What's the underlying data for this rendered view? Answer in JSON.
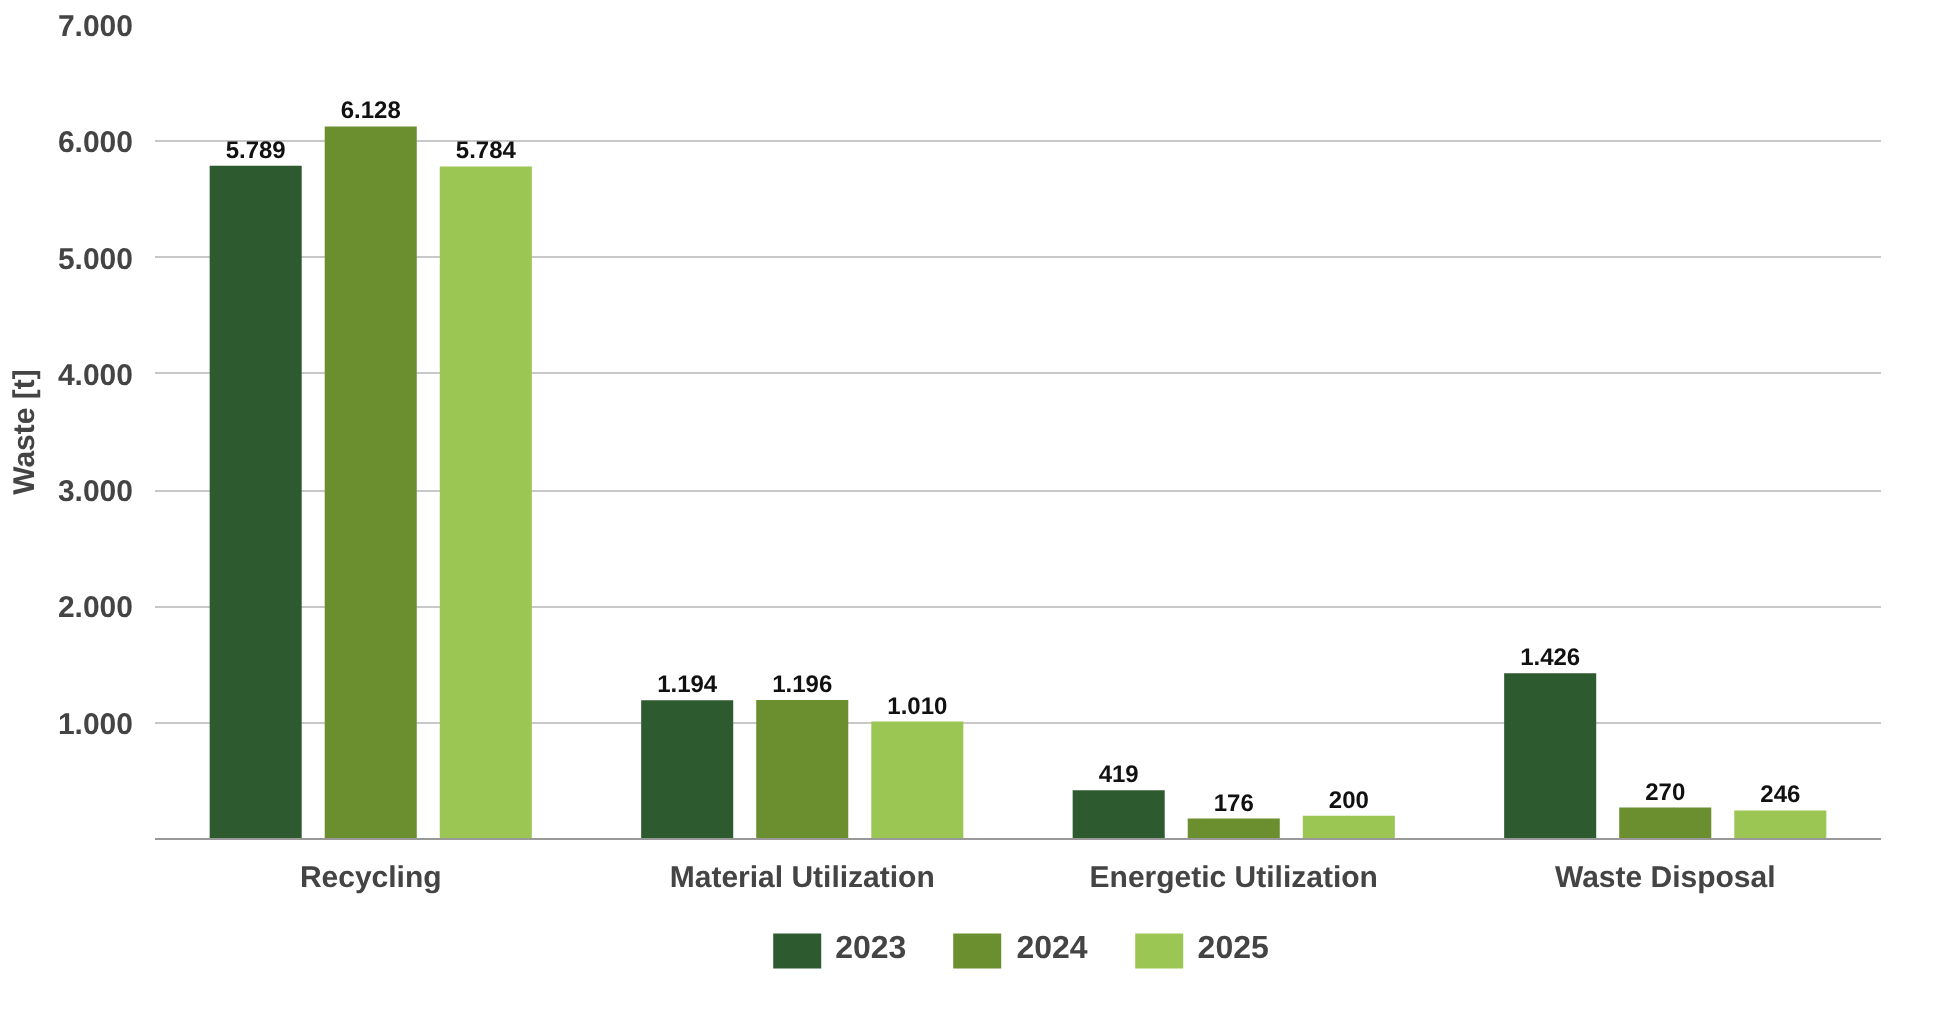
{
  "chart_data": {
    "type": "bar",
    "ylabel": "Waste [t]",
    "categories": [
      "Recycling",
      "Material Utilization",
      "Energetic Utilization",
      "Waste Disposal"
    ],
    "series": [
      {
        "name": "2023",
        "color": "#2d5a2f",
        "values": [
          5789,
          1194,
          419,
          1426
        ],
        "value_labels": [
          "5.789",
          "1.194",
          "419",
          "1.426"
        ]
      },
      {
        "name": "2024",
        "color": "#6b8e2f",
        "values": [
          6128,
          1196,
          176,
          270
        ],
        "value_labels": [
          "6.128",
          "1.196",
          "176",
          "270"
        ]
      },
      {
        "name": "2025",
        "color": "#9cc653",
        "values": [
          5784,
          1010,
          200,
          246
        ],
        "value_labels": [
          "5.784",
          "1.010",
          "200",
          "246"
        ]
      }
    ],
    "ylim": [
      0,
      7000
    ],
    "yticks": [
      {
        "value": 1000,
        "label": "1.000"
      },
      {
        "value": 2000,
        "label": "2.000"
      },
      {
        "value": 3000,
        "label": "3.000"
      },
      {
        "value": 4000,
        "label": "4.000"
      },
      {
        "value": 5000,
        "label": "5.000"
      },
      {
        "value": 6000,
        "label": "6.000"
      },
      {
        "value": 7000,
        "label": "7.000"
      }
    ],
    "grid": "y",
    "legend": "bottom"
  }
}
